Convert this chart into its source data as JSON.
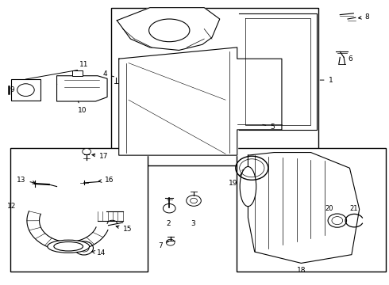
{
  "background_color": "#ffffff",
  "line_color": "#000000",
  "text_color": "#000000",
  "fig_width": 4.9,
  "fig_height": 3.6,
  "dpi": 100
}
